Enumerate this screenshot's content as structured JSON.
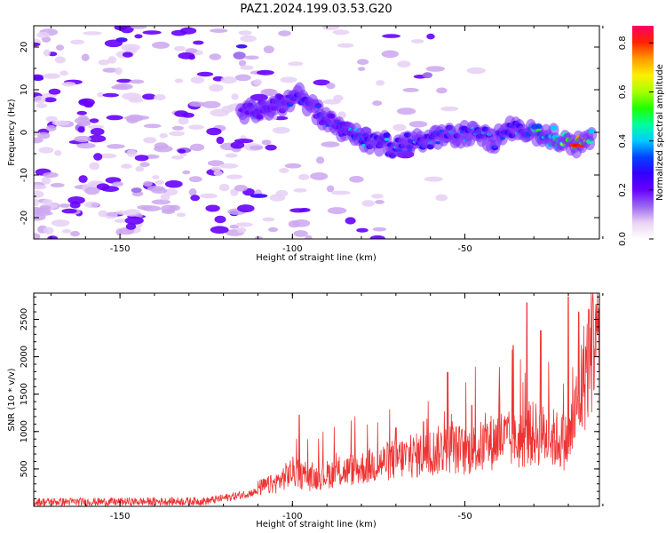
{
  "figure": {
    "title": "PAZ1.2024.199.03.53.G20"
  },
  "chart_data": [
    {
      "type": "heatmap",
      "title": "",
      "xlabel": "Height of straight line (km)",
      "ylabel": "Frequency (Hz)",
      "xlim": [
        -175,
        -11
      ],
      "ylim": [
        -25,
        25
      ],
      "xticks": [
        -150,
        -100,
        -50
      ],
      "yticks": [
        -20,
        -10,
        0,
        10,
        20
      ],
      "colorbar": {
        "label": "Normalized spectral amplitude",
        "range": [
          0.0,
          0.87
        ],
        "ticks": [
          0.0,
          0.2,
          0.4,
          0.6,
          0.8
        ],
        "colormap": [
          "#ffffff",
          "#ead2f4",
          "#9966f0",
          "#6600ff",
          "#3300ff",
          "#0044ff",
          "#00ccff",
          "#00ff99",
          "#22ff00",
          "#aaff00",
          "#ffee00",
          "#ff9900",
          "#ff2200",
          "#ff0066"
        ]
      },
      "ridge": {
        "x": [
          -115,
          -105,
          -98,
          -92,
          -85,
          -78,
          -70,
          -62,
          -55,
          -48,
          -42,
          -36,
          -30,
          -24,
          -18,
          -13
        ],
        "y": [
          5,
          6,
          9,
          4,
          0,
          -2,
          -3,
          -2,
          -1,
          0,
          -2,
          1,
          0,
          -1,
          -3,
          -2
        ],
        "peak_amplitude": [
          0.25,
          0.3,
          0.35,
          0.32,
          0.33,
          0.35,
          0.37,
          0.37,
          0.36,
          0.38,
          0.38,
          0.39,
          0.45,
          0.55,
          0.8,
          0.6
        ]
      }
    },
    {
      "type": "line",
      "title": "",
      "xlabel": "Height of straight line (km)",
      "ylabel": "SNR (10 * v/v)",
      "xlim": [
        -175,
        -11
      ],
      "ylim": [
        0,
        2850
      ],
      "xticks": [
        -150,
        -100,
        -50
      ],
      "yticks": [
        500,
        1000,
        1500,
        2000,
        2500
      ],
      "color": "#ee3333",
      "series": [
        {
          "x": [
            -175,
            -150,
            -125,
            -115,
            -105,
            -100,
            -95,
            -90,
            -80,
            -70,
            -60,
            -55,
            -50,
            -45,
            -40,
            -35,
            -30,
            -25,
            -20,
            -18,
            -15,
            -12,
            -11
          ],
          "y": [
            60,
            60,
            70,
            150,
            250,
            380,
            300,
            350,
            420,
            520,
            580,
            650,
            600,
            650,
            750,
            700,
            800,
            750,
            700,
            1000,
            1500,
            2000,
            2100
          ]
        }
      ],
      "spikes": [
        {
          "x": -98,
          "y": 1220
        },
        {
          "x": -70,
          "y": 1050
        },
        {
          "x": -62,
          "y": 1130
        },
        {
          "x": -55,
          "y": 1790
        },
        {
          "x": -48,
          "y": 1350
        },
        {
          "x": -40,
          "y": 1500
        },
        {
          "x": -36,
          "y": 2150
        },
        {
          "x": -32,
          "y": 2720
        },
        {
          "x": -28,
          "y": 2350
        },
        {
          "x": -20,
          "y": 2800
        },
        {
          "x": -17,
          "y": 2600
        },
        {
          "x": -12,
          "y": 2700
        }
      ]
    }
  ]
}
